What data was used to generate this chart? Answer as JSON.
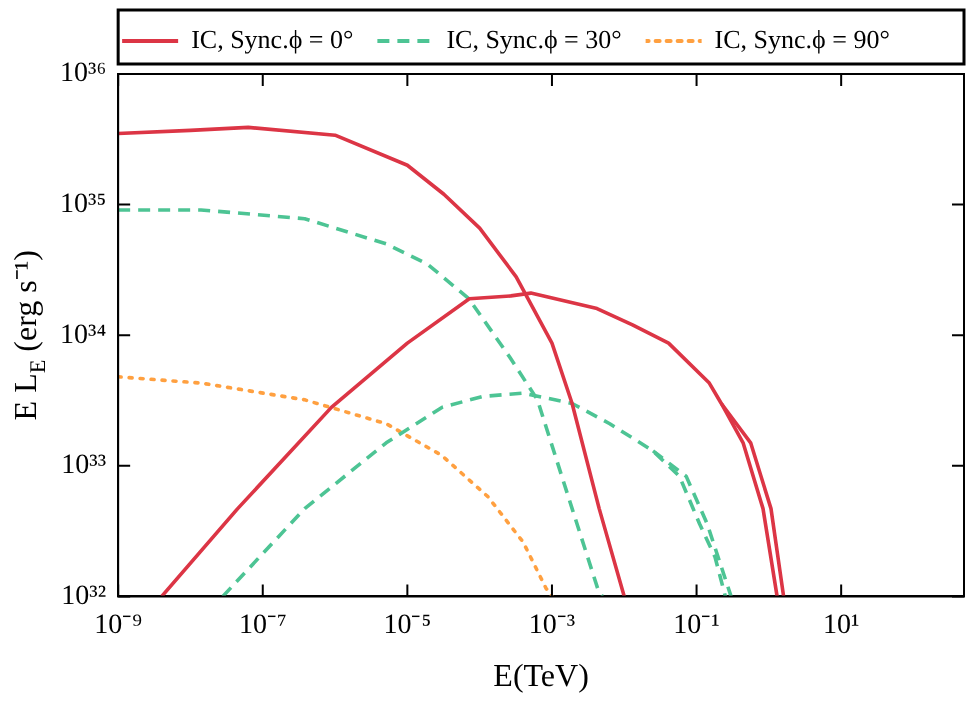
{
  "chart_data": {
    "type": "line",
    "xlabel": "E(TeV)",
    "ylabel": "E L$_{E}$ (erg s⁻¹)",
    "log": "xy",
    "grid": false,
    "legend": "top",
    "marker": "none",
    "xlim": [
      1e-09,
      500
    ],
    "ylim": [
      1e+32,
      1e+36
    ],
    "xticks": [
      {
        "value": 1e-09,
        "label": "10⁻⁹"
      },
      {
        "value": 1e-07,
        "label": "10⁻⁷"
      },
      {
        "value": 1e-05,
        "label": "10⁻⁵"
      },
      {
        "value": 0.001,
        "label": "10⁻³"
      },
      {
        "value": 0.1,
        "label": "10⁻¹"
      },
      {
        "value": 10,
        "label": "10¹"
      }
    ],
    "yticks": [
      {
        "value": 1e+32,
        "label": "10³²"
      },
      {
        "value": 1e+33,
        "label": "10³³"
      },
      {
        "value": 1e+34,
        "label": "10³⁴"
      },
      {
        "value": 1e+35,
        "label": "10³⁵"
      },
      {
        "value": 1e+36,
        "label": "10³⁶"
      }
    ],
    "series": [
      {
        "name": "IC, Sync.ϕ = 0°",
        "color": "#dc3545",
        "line_style": "solid",
        "x": [
          1e-09,
          1e-08,
          6.3e-08,
          1e-06,
          1e-05,
          3.2e-05,
          0.0001,
          0.00032,
          0.001,
          0.0019,
          0.0045,
          0.01
        ],
        "values": [
          3.5e+35,
          3.7e+35,
          3.9e+35,
          3.4e+35,
          2e+35,
          1.2e+35,
          6.6e+34,
          2.8e+34,
          8.7e+33,
          3e+33,
          4.7e+32,
          1e+32
        ]
      },
      {
        "color": "#dc3545",
        "line_style": "solid",
        "x": [
          4e-09,
          4.5e-08,
          8.9e-07,
          1e-05,
          7.2e-05,
          0.00027,
          0.00051,
          0.0042,
          0.013,
          0.041,
          0.15,
          0.22,
          0.44,
          0.83,
          1.3
        ],
        "values": [
          1e+32,
          4.7e+32,
          2.8e+33,
          8.7e+33,
          1.9e+34,
          2e+34,
          2.1e+34,
          1.6e+34,
          1.2e+34,
          8.7e+33,
          4.3e+33,
          3e+33,
          1.5e+33,
          4.7e+32,
          1e+32
        ]
      },
      {
        "color": "#dc3545",
        "line_style": "solid",
        "x": [
          0.22,
          0.56,
          1.07,
          1.6
        ],
        "values": [
          3e+33,
          1.5e+33,
          4.7e+32,
          1e+32
        ]
      },
      {
        "name": "IC, Sync.ϕ = 30°",
        "color": "#4dc494",
        "line_style": "dashed",
        "x": [
          1e-09,
          1.4e-08,
          3.8e-07,
          5.1e-06,
          1.9e-05,
          7.1e-05,
          0.00026,
          0.00063,
          0.0019,
          0.0044,
          0.005
        ],
        "values": [
          9.1e+34,
          9.1e+34,
          7.8e+34,
          5e+34,
          3.5e+34,
          1.9e+34,
          6.8e+33,
          3.2e+33,
          4.7e+32,
          1.1e+32,
          1e+32
        ]
      },
      {
        "color": "#4dc494",
        "line_style": "dashed",
        "x": [
          2.8e-08,
          3.8e-07,
          5.1e-06,
          3e-05,
          0.00011,
          0.0004,
          0.0019,
          0.0063,
          0.025,
          0.058,
          0.11,
          0.18,
          0.25
        ],
        "values": [
          1e+32,
          4.7e+32,
          1.5e+33,
          2.8e+33,
          3.4e+33,
          3.6e+33,
          3e+33,
          2.1e+33,
          1.3e+33,
          8.3e+32,
          3.6e+32,
          2e+32,
          1e+32
        ]
      },
      {
        "color": "#4dc494",
        "line_style": "dashed",
        "x": [
          0.025,
          0.072,
          0.14,
          0.3
        ],
        "values": [
          1.3e+33,
          8.3e+32,
          3.6e+32,
          1e+32
        ]
      },
      {
        "name": "IC, Sync.ϕ = 90°",
        "color": "#ffa040",
        "line_style": "dotted",
        "x": [
          1e-09,
          1.4e-08,
          3.8e-07,
          5.1e-06,
          3e-05,
          0.00013,
          0.0004,
          0.00083,
          0.001
        ],
        "values": [
          4.8e+33,
          4.3e+33,
          3.2e+33,
          2.1e+33,
          1.2e+33,
          5.8e+32,
          2.6e+32,
          1.15e+32,
          1e+32
        ]
      }
    ]
  }
}
